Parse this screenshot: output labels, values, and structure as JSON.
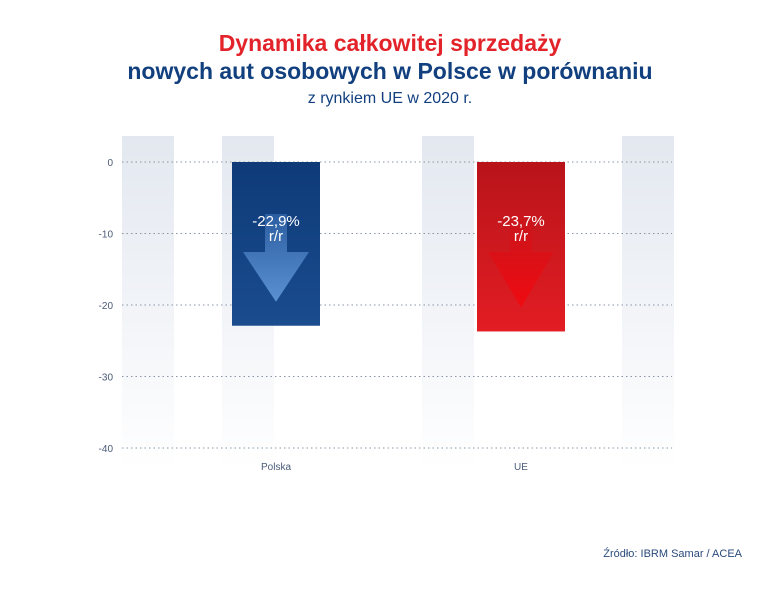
{
  "title_line1": "Dynamika całkowitej sprzedaży",
  "title_line2": "nowych aut osobowych w Polsce w porównaniu",
  "title_line3": "z rynkiem UE w 2020 r.",
  "source": "Źródło: IBRM Samar / ACEA",
  "colors": {
    "poland": "#12407f",
    "eu": "#d4161c",
    "title_red": "#e3232a",
    "title_blue": "#12407f",
    "grid": "#8a96a8",
    "tick": "#4a5a78"
  },
  "chart_data": {
    "type": "bar",
    "title": "Dynamika całkowitej sprzedaży nowych aut osobowych w Polsce w porównaniu z rynkiem UE w 2020 r.",
    "categories": [
      "Polska",
      "UE"
    ],
    "values": [
      -22.9,
      -23.7
    ],
    "data_labels": [
      "-22,9%\nr/r",
      "-23,7%\nr/r"
    ],
    "yticks": [
      0,
      -10,
      -20,
      -30,
      -40
    ],
    "ylim": [
      -40,
      0
    ],
    "grid": true,
    "icon": "down-arrow-icon"
  }
}
